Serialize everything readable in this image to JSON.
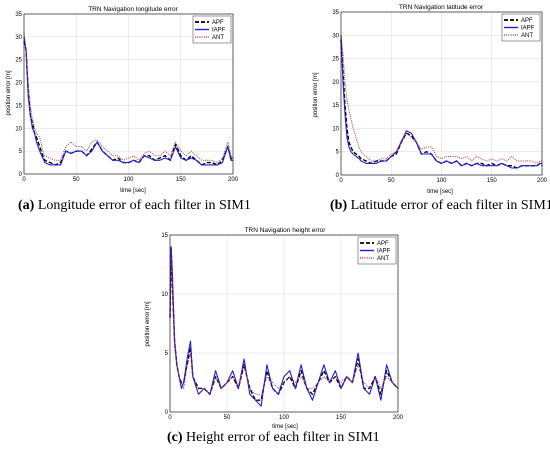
{
  "colors": {
    "APF": "#000000",
    "IAPF": "#1f1fd6",
    "ANT": "#b22222"
  },
  "captions": {
    "a": {
      "tag": "(a)",
      "text": " Longitude error of each filter in SIM1"
    },
    "b": {
      "tag": "(b)",
      "text": " Latitude error of each filter in SIM1"
    },
    "c": {
      "tag": "(c)",
      "text": " Height error of each filter in SIM1"
    }
  },
  "chart_data": [
    {
      "id": "a",
      "type": "line",
      "title": "TRN Navigation longitude error",
      "xlabel": "time [sec]",
      "ylabel": "position error [m]",
      "xlim": [
        0,
        200
      ],
      "ylim": [
        0,
        35
      ],
      "xticks": [
        0,
        50,
        100,
        150,
        200
      ],
      "yticks": [
        0,
        5,
        10,
        15,
        20,
        25,
        30,
        35
      ],
      "grid": true,
      "legend": "top-right",
      "x": [
        0,
        2,
        4,
        6,
        8,
        10,
        12,
        15,
        18,
        20,
        25,
        30,
        35,
        40,
        45,
        50,
        55,
        60,
        65,
        70,
        75,
        80,
        85,
        90,
        95,
        100,
        105,
        110,
        115,
        120,
        125,
        130,
        135,
        140,
        145,
        150,
        155,
        160,
        165,
        170,
        175,
        180,
        185,
        190,
        195,
        198,
        200
      ],
      "series": [
        {
          "name": "APF",
          "style": "dashed",
          "values": [
            29,
            27,
            18,
            13,
            11,
            9,
            8,
            6,
            4,
            3,
            2.5,
            2,
            2.5,
            5,
            4.5,
            5,
            5,
            4,
            5.5,
            7,
            5,
            4,
            3,
            3.5,
            2.5,
            2.5,
            3,
            2.5,
            4,
            4,
            3,
            3.5,
            4,
            3,
            6.5,
            4,
            3,
            4,
            3,
            2,
            2.5,
            2.5,
            2,
            3,
            6,
            3.5,
            3
          ]
        },
        {
          "name": "IAPF",
          "style": "solid",
          "values": [
            30,
            27,
            17,
            13,
            10,
            9,
            7,
            5,
            3.5,
            2.5,
            2,
            2,
            2,
            5,
            4.5,
            5,
            5,
            4,
            5,
            7,
            5,
            4,
            3,
            3,
            2.5,
            2.5,
            3,
            2.5,
            4,
            3.5,
            3,
            3,
            3.5,
            3,
            6,
            3.5,
            3,
            3.5,
            3,
            2,
            2,
            2,
            2,
            2.5,
            6,
            3,
            3
          ]
        },
        {
          "name": "ANT",
          "style": "dotted",
          "values": [
            31,
            27,
            20,
            15,
            12,
            10,
            9,
            8,
            5,
            4,
            3.5,
            3,
            3,
            6,
            7,
            6,
            6,
            5,
            7,
            7.5,
            6,
            5,
            4,
            4,
            3,
            3.5,
            4,
            3,
            4.5,
            5,
            4,
            4,
            5,
            4,
            7,
            5,
            4,
            5,
            4,
            3,
            3,
            3,
            2.5,
            3.5,
            7,
            4,
            3.5
          ]
        }
      ]
    },
    {
      "id": "b",
      "type": "line",
      "title": "TRN Navigation latitude error",
      "xlabel": "time [sec]",
      "ylabel": "position error [m]",
      "xlim": [
        0,
        200
      ],
      "ylim": [
        0,
        35
      ],
      "xticks": [
        0,
        50,
        100,
        150,
        200
      ],
      "yticks": [
        0,
        5,
        10,
        15,
        20,
        25,
        30,
        35
      ],
      "grid": true,
      "legend": "top-right",
      "x": [
        0,
        2,
        4,
        6,
        8,
        10,
        12,
        15,
        18,
        20,
        25,
        30,
        35,
        40,
        45,
        50,
        55,
        60,
        65,
        70,
        75,
        80,
        85,
        90,
        95,
        100,
        105,
        110,
        115,
        120,
        125,
        130,
        135,
        140,
        145,
        150,
        155,
        160,
        165,
        170,
        175,
        180,
        185,
        190,
        195,
        198,
        200
      ],
      "series": [
        {
          "name": "APF",
          "style": "dashed",
          "values": [
            29,
            22,
            15,
            10,
            7,
            6,
            5,
            4.5,
            4,
            3.5,
            3,
            2.5,
            3,
            3,
            3,
            4,
            4.5,
            7,
            9,
            8.5,
            7,
            4.5,
            5,
            4.5,
            3,
            2.5,
            3,
            2.5,
            3,
            2,
            2.5,
            2,
            2.5,
            2.5,
            2,
            2.5,
            2,
            2.5,
            2,
            2,
            1.5,
            2,
            2,
            2,
            2,
            2.5,
            2
          ]
        },
        {
          "name": "IAPF",
          "style": "solid",
          "values": [
            30,
            20,
            13,
            8,
            6,
            5,
            4.5,
            4,
            3.5,
            3,
            2.5,
            2.5,
            2.5,
            3,
            3,
            4,
            5,
            7,
            9.5,
            9,
            7,
            4.5,
            4.5,
            4.5,
            3,
            2.5,
            3,
            2.5,
            3,
            2,
            2.5,
            2,
            2.5,
            2,
            2,
            2,
            2,
            2.5,
            2,
            1.5,
            1.5,
            2,
            2,
            2,
            2,
            2.5,
            2.5
          ]
        },
        {
          "name": "ANT",
          "style": "dotted",
          "values": [
            30,
            26,
            20,
            16,
            14,
            12,
            10,
            8,
            6,
            5,
            4,
            3,
            3,
            3.5,
            3.5,
            4.5,
            5,
            7.5,
            9,
            8,
            7,
            5.5,
            6,
            6,
            4,
            3.5,
            4,
            4,
            4,
            3.5,
            4,
            3,
            4,
            3.5,
            3,
            3.5,
            3,
            3.5,
            3,
            4,
            3,
            3,
            3,
            3,
            2.5,
            3,
            3
          ]
        }
      ]
    },
    {
      "id": "c",
      "type": "line",
      "title": "TRN Navigation height error",
      "xlabel": "time [sec]",
      "ylabel": "position error [m]",
      "xlim": [
        0,
        200
      ],
      "ylim": [
        0,
        15
      ],
      "xticks": [
        0,
        50,
        100,
        150,
        200
      ],
      "yticks": [
        0,
        5,
        10,
        15
      ],
      "grid": true,
      "legend": "top-right",
      "x": [
        0,
        1,
        2,
        4,
        6,
        8,
        10,
        12,
        15,
        18,
        20,
        25,
        30,
        35,
        40,
        45,
        50,
        55,
        60,
        65,
        70,
        75,
        80,
        85,
        90,
        95,
        100,
        105,
        110,
        115,
        120,
        125,
        130,
        135,
        140,
        145,
        150,
        155,
        160,
        165,
        170,
        175,
        180,
        185,
        190,
        195,
        200
      ],
      "series": [
        {
          "name": "APF",
          "style": "dashed",
          "values": [
            8,
            14,
            11,
            6,
            4,
            3,
            2.5,
            2.5,
            4,
            5.5,
            3,
            2,
            2,
            1.5,
            3,
            2,
            2.5,
            3,
            2,
            4,
            2,
            1,
            1,
            3.5,
            2,
            1.5,
            2.5,
            3,
            2,
            3.5,
            2,
            1.5,
            2.5,
            3.5,
            2.5,
            3,
            2,
            3,
            2.5,
            4.5,
            2,
            2,
            3,
            1.5,
            3.5,
            2.5,
            2
          ]
        },
        {
          "name": "IAPF",
          "style": "solid",
          "values": [
            8,
            14,
            12,
            6,
            4,
            3,
            2,
            2.5,
            4.5,
            6,
            3,
            1.5,
            2,
            1.5,
            3.5,
            2,
            2.5,
            3.5,
            2,
            4.5,
            1.5,
            1,
            0.5,
            4,
            2,
            1.5,
            3,
            3.5,
            2,
            4,
            2,
            1,
            2.5,
            4,
            2.5,
            3.5,
            2,
            3,
            2.5,
            5,
            2,
            1.5,
            3,
            1,
            4,
            2.5,
            2
          ]
        },
        {
          "name": "ANT",
          "style": "dotted",
          "values": [
            8,
            13,
            10,
            5.5,
            4,
            3,
            2.5,
            2,
            4,
            5,
            3,
            2,
            2,
            1.5,
            3,
            2,
            2.5,
            3,
            2,
            4,
            2,
            1.5,
            1.5,
            3,
            2.5,
            2,
            2.5,
            3,
            2.5,
            3,
            2,
            2,
            2.5,
            3,
            2.5,
            3,
            2.5,
            3,
            2.5,
            4,
            2.5,
            2,
            3,
            2,
            3,
            2.5,
            2
          ]
        }
      ]
    }
  ]
}
